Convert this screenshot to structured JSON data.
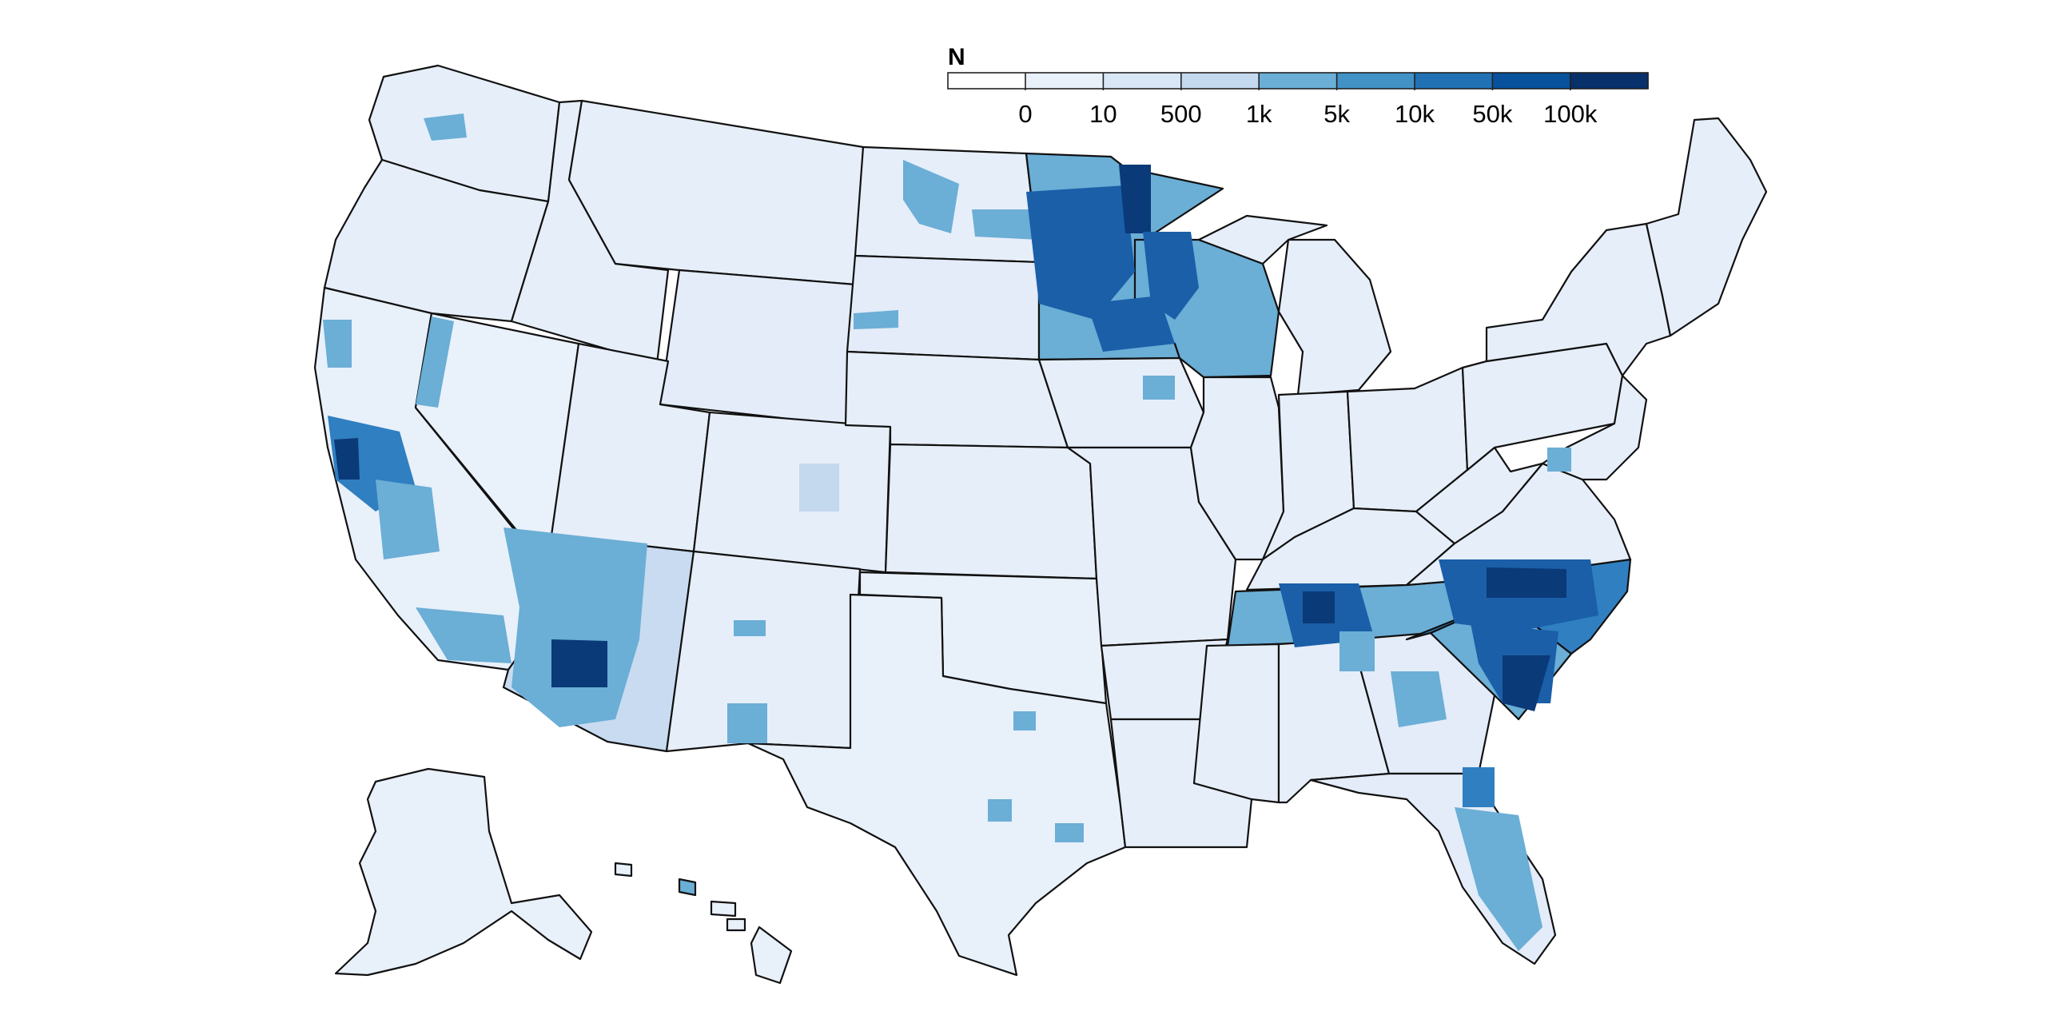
{
  "legend": {
    "title": "N",
    "labels": [
      "0",
      "10",
      "500",
      "1k",
      "5k",
      "10k",
      "50k",
      "100k"
    ],
    "colors": [
      "#ffffff",
      "#e8f0fa",
      "#d9e6f5",
      "#c4d8ee",
      "#6baed6",
      "#4292c6",
      "#2171b5",
      "#08519c",
      "#08306b"
    ]
  },
  "colors": {
    "base": "#e3ecf8",
    "light": "#e8f0fa",
    "low": "#c4d8ee",
    "mid": "#6baed6",
    "high": "#2f7fc1",
    "veryhigh": "#1a5fa8",
    "top": "#0b3a78",
    "border": "#111111"
  }
}
